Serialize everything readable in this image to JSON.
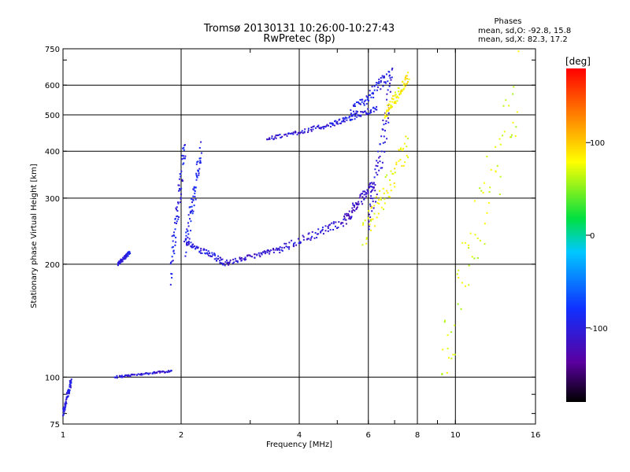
{
  "header": {
    "title_line1": "Tromsø 20130131 10:26:00-10:27:43",
    "title_line2": "RwPretec (8p)",
    "stats_heading": "Phases",
    "stats_o": "mean, sd,O: -92.8, 15.8",
    "stats_x": "mean, sd,X:  82.3, 17.2"
  },
  "chart_data": {
    "type": "scatter",
    "title": "Tromsø 20130131 10:26:00-10:27:43",
    "subtitle": "RwPretec (8p)",
    "xlabel": "Frequency [MHz]",
    "ylabel": "Stationary phase Virtual Height [km]",
    "x_scale": "log",
    "y_scale": "log",
    "xlim": [
      1,
      16
    ],
    "ylim": [
      75,
      750
    ],
    "x_ticks": [
      1,
      2,
      4,
      6,
      8,
      10,
      16
    ],
    "y_ticks": [
      75,
      100,
      200,
      300,
      400,
      500,
      600,
      750
    ],
    "x_tick_labels": [
      "1",
      "2",
      "4",
      "6",
      "8",
      "10",
      "16"
    ],
    "y_tick_labels": [
      "75",
      "100",
      "200",
      "300",
      "400",
      "500",
      "600",
      "750"
    ],
    "grid": true,
    "colorbar": {
      "label": "[deg]",
      "range": [
        -180,
        180
      ],
      "tick_values": [
        100,
        0,
        -100
      ],
      "tick_labels": [
        "100",
        "0",
        "-100"
      ]
    },
    "series": [
      {
        "segments": [
          {
            "x": [
              1.0,
              1.05
            ],
            "y": [
              80,
              98
            ],
            "phase": -100
          },
          {
            "x": [
              1.35,
              1.9
            ],
            "y": [
              100,
              104
            ],
            "phase": -105
          },
          {
            "x": [
              1.38,
              1.48
            ],
            "y": [
              200,
              215
            ],
            "phase": -100
          },
          {
            "x": [
              1.88,
              2.05
            ],
            "y": [
              195,
              420
            ],
            "phase": -95
          },
          {
            "x": [
              2.05,
              2.25
            ],
            "y": [
              220,
              400
            ],
            "phase": -90
          },
          {
            "x": [
              2.05,
              2.6
            ],
            "y": [
              230,
              201
            ],
            "phase": -100
          },
          {
            "x": [
              2.6,
              3.6
            ],
            "y": [
              201,
              220
            ],
            "phase": -110
          },
          {
            "x": [
              3.6,
              5.2
            ],
            "y": [
              220,
              260
            ],
            "phase": -105
          },
          {
            "x": [
              5.2,
              6.2
            ],
            "y": [
              260,
              330
            ],
            "phase": -115
          },
          {
            "x": [
              3.3,
              4.8
            ],
            "y": [
              430,
              470
            ],
            "phase": -105
          },
          {
            "x": [
              4.8,
              6.3
            ],
            "y": [
              470,
              520
            ],
            "phase": -100
          },
          {
            "x": [
              5.4,
              6.8
            ],
            "y": [
              500,
              640
            ],
            "phase": -95
          },
          {
            "x": [
              6.0,
              6.9
            ],
            "y": [
              250,
              600
            ],
            "phase": -105
          }
        ]
      },
      {
        "segments": [
          {
            "x": [
              5.8,
              7.6
            ],
            "y": [
              235,
              420
            ],
            "phase": 80
          },
          {
            "x": [
              6.6,
              7.6
            ],
            "y": [
              500,
              630
            ],
            "phase": 85
          },
          {
            "x": [
              9.2,
              14.5
            ],
            "y": [
              110,
              600
            ],
            "phase": 70
          }
        ]
      }
    ]
  }
}
